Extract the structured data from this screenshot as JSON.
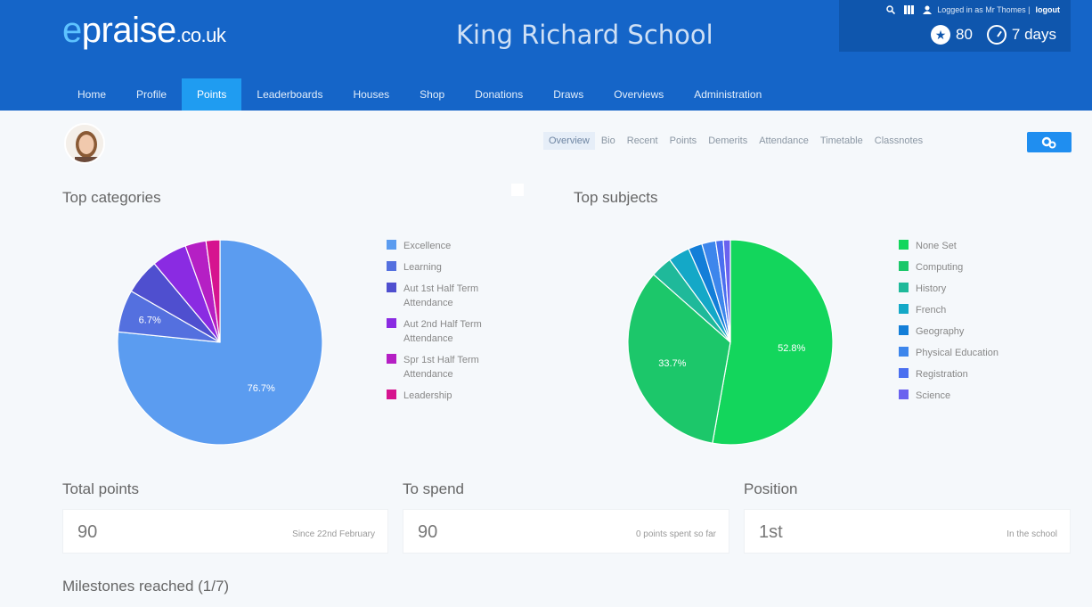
{
  "header": {
    "logo_e": "e",
    "logo_main": "praise",
    "logo_tld": ".co.uk",
    "school_name": "King Richard School",
    "logged_in_text": "Logged in as Mr Thomes |",
    "logout_label": "logout",
    "points": "80",
    "streak": "7 days"
  },
  "nav": {
    "tabs": [
      "Home",
      "Profile",
      "Points",
      "Leaderboards",
      "Houses",
      "Shop",
      "Donations",
      "Draws",
      "Overviews",
      "Administration"
    ],
    "active": "Points"
  },
  "subnav": {
    "tabs": [
      "Overview",
      "Bio",
      "Recent",
      "Points",
      "Demerits",
      "Attendance",
      "Timetable",
      "Classnotes"
    ],
    "active": "Overview"
  },
  "sections": {
    "top_categories": "Top categories",
    "top_subjects": "Top subjects",
    "total_points": "Total points",
    "to_spend": "To spend",
    "position": "Position",
    "milestones": "Milestones reached (1/7)"
  },
  "cards": {
    "total_value": "90",
    "total_note": "Since 22nd February",
    "spend_value": "90",
    "spend_note": "0 points spent so far",
    "position_value": "1st",
    "position_note": "In the school"
  },
  "chart_data": [
    {
      "type": "pie",
      "title": "Top categories",
      "labels": [
        "Excellence",
        "Learning",
        "Aut 1st Half Term Attendance",
        "Aut 2nd Half Term Attendance",
        "Spr 1st Half Term Attendance",
        "Leadership"
      ],
      "values": [
        76.7,
        6.7,
        5.6,
        5.6,
        3.3,
        2.2
      ],
      "colors": [
        "#5b9cf0",
        "#5470df",
        "#4f4fcf",
        "#8a2be2",
        "#b51fc4",
        "#d6148f"
      ],
      "data_labels": [
        "76.7%",
        "6.7%",
        "",
        "",
        "",
        ""
      ]
    },
    {
      "type": "pie",
      "title": "Top subjects",
      "labels": [
        "None Set",
        "Computing",
        "History",
        "French",
        "Geography",
        "Physical Education",
        "Registration",
        "Science"
      ],
      "values": [
        52.8,
        33.7,
        3.4,
        3.4,
        2.2,
        2.2,
        1.2,
        1.1
      ],
      "colors": [
        "#13d65c",
        "#1cc76a",
        "#1fb99a",
        "#14a8c7",
        "#137ed8",
        "#3d86ec",
        "#4a6ff0",
        "#6a62ef"
      ],
      "data_labels": [
        "52.8%",
        "33.7%",
        "",
        "",
        "",
        "",
        "",
        ""
      ]
    }
  ]
}
